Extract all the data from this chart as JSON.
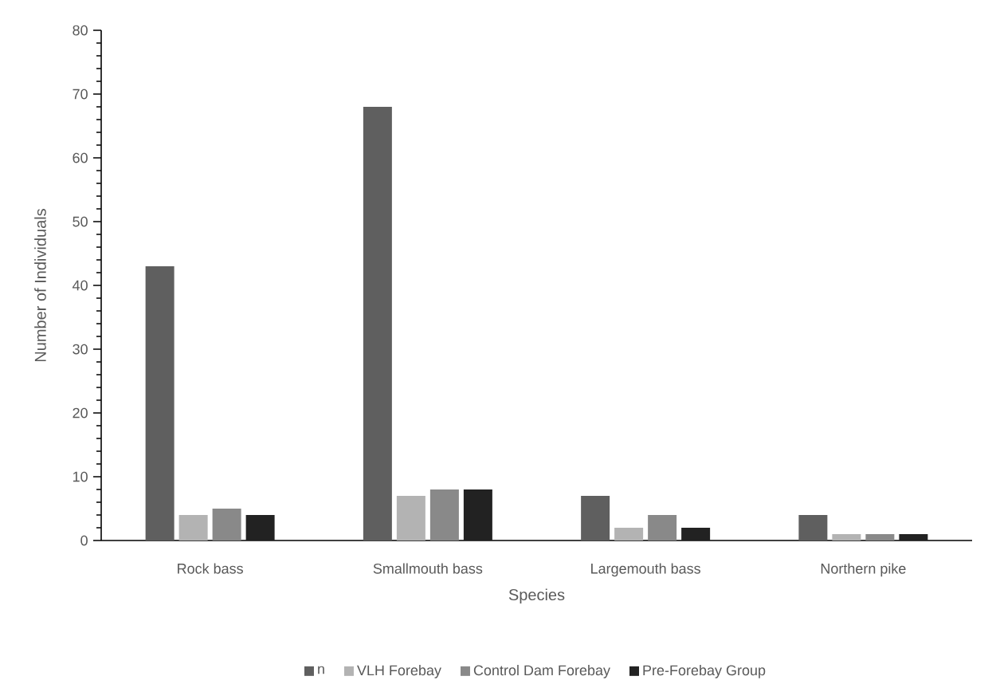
{
  "chart_data": {
    "type": "bar",
    "xlabel": "Species",
    "ylabel": "Number of Individuals",
    "categories": [
      "Rock bass",
      "Smallmouth bass",
      "Largemouth bass",
      "Northern pike"
    ],
    "series": [
      {
        "name": "n",
        "color": "#5f5f5f",
        "values": [
          43,
          68,
          7,
          4
        ]
      },
      {
        "name": "VLH Forebay",
        "color": "#b3b3b3",
        "values": [
          4,
          7,
          2,
          1
        ]
      },
      {
        "name": "Control Dam Forebay",
        "color": "#898989",
        "values": [
          5,
          8,
          4,
          1
        ]
      },
      {
        "name": "Pre-Forebay Group",
        "color": "#222222",
        "values": [
          4,
          8,
          2,
          1
        ]
      }
    ],
    "ylim": [
      0,
      80
    ],
    "yticks": [
      0,
      10,
      20,
      30,
      40,
      50,
      60,
      70,
      80
    ],
    "legend": "bottom"
  }
}
